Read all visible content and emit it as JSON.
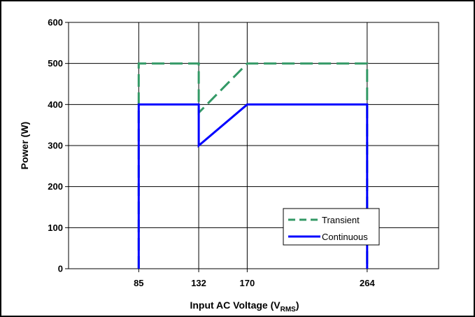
{
  "chart_data": {
    "type": "line",
    "xlabel": "Input AC Voltage (V",
    "xlabel_sub": "RMS",
    "xlabel_close": ")",
    "ylabel": "Power (W)",
    "xlim": [
      30,
      320
    ],
    "ylim": [
      0,
      600
    ],
    "x_ticks": [
      85,
      132,
      170,
      264
    ],
    "x_tick_labels": [
      "85",
      "132",
      "170",
      "264"
    ],
    "y_ticks": [
      0,
      100,
      200,
      300,
      400,
      500,
      600
    ],
    "y_tick_labels": [
      "0",
      "100",
      "200",
      "300",
      "400",
      "500",
      "600"
    ],
    "grid": true,
    "legend_position": "lower-right",
    "series": [
      {
        "name": "Transient",
        "color": "#339966",
        "style": "dashed",
        "x": [
          85,
          85,
          132,
          132,
          170,
          264,
          264
        ],
        "y": [
          0,
          500,
          500,
          380,
          500,
          500,
          0
        ]
      },
      {
        "name": "Continuous",
        "color": "#0000ff",
        "style": "solid",
        "x": [
          85,
          85,
          132,
          132,
          170,
          264,
          264
        ],
        "y": [
          0,
          400,
          400,
          300,
          400,
          400,
          0
        ]
      }
    ]
  }
}
